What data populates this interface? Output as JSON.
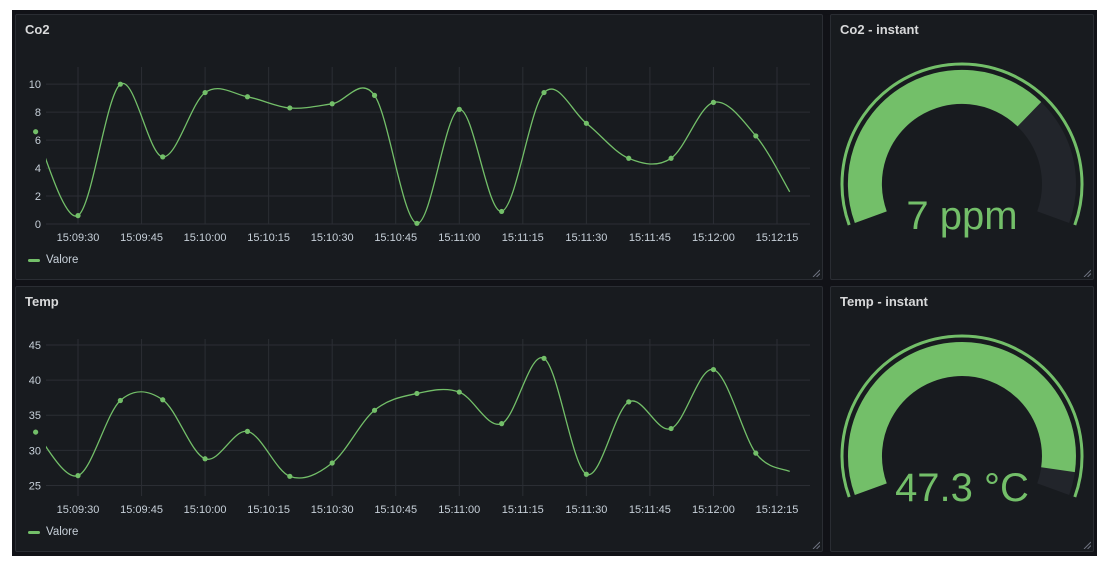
{
  "colors": {
    "series": "#73bf69",
    "gauge_track": "#22252b",
    "text": "#c7d0d9"
  },
  "panels": {
    "co2": {
      "title": "Co2",
      "legend_label": "Valore",
      "legend_icon": "legend-line-icon"
    },
    "temp": {
      "title": "Temp",
      "legend_label": "Valore",
      "legend_icon": "legend-line-icon"
    },
    "co2_instant": {
      "title": "Co2 - instant",
      "value_text": "7 ppm",
      "value": 7,
      "min": 0,
      "max": 10
    },
    "temp_instant": {
      "title": "Temp - instant",
      "value_text": "47.3 °C",
      "value": 47.3,
      "min": 0,
      "max": 50
    }
  },
  "chart_data": [
    {
      "type": "line",
      "title": "Co2",
      "xlabel": "",
      "ylabel": "",
      "x_ticks": [
        "15:09:30",
        "15:09:45",
        "15:10:00",
        "15:10:15",
        "15:10:30",
        "15:10:45",
        "15:11:00",
        "15:11:15",
        "15:11:30",
        "15:11:45",
        "15:12:00",
        "15:12:15"
      ],
      "y_ticks": [
        0,
        2,
        4,
        6,
        8,
        10
      ],
      "ylim": [
        0,
        10.8
      ],
      "grid": true,
      "series": [
        {
          "name": "Valore",
          "points": [
            [
              "15:09:20",
              6.6
            ],
            [
              "15:09:30",
              0.6
            ],
            [
              "15:09:40",
              10.0
            ],
            [
              "15:09:50",
              4.8
            ],
            [
              "15:10:00",
              9.4
            ],
            [
              "15:10:10",
              9.1
            ],
            [
              "15:10:20",
              8.3
            ],
            [
              "15:10:30",
              8.6
            ],
            [
              "15:10:40",
              9.2
            ],
            [
              "15:10:50",
              0.05
            ],
            [
              "15:11:00",
              8.2
            ],
            [
              "15:11:10",
              0.9
            ],
            [
              "15:11:20",
              9.4
            ],
            [
              "15:11:30",
              7.2
            ],
            [
              "15:11:40",
              4.7
            ],
            [
              "15:11:50",
              4.7
            ],
            [
              "15:12:00",
              8.7
            ],
            [
              "15:12:10",
              6.3
            ],
            [
              "15:12:18",
              2.3
            ]
          ],
          "markers_count": 18
        }
      ],
      "legend": "bottom-left"
    },
    {
      "type": "line",
      "title": "Temp",
      "xlabel": "",
      "ylabel": "",
      "x_ticks": [
        "15:09:30",
        "15:09:45",
        "15:10:00",
        "15:10:15",
        "15:10:30",
        "15:10:45",
        "15:11:00",
        "15:11:15",
        "15:11:30",
        "15:11:45",
        "15:12:00",
        "15:12:15"
      ],
      "y_ticks": [
        25,
        30,
        35,
        40,
        45
      ],
      "ylim": [
        23.5,
        45
      ],
      "grid": true,
      "series": [
        {
          "name": "Valore",
          "points": [
            [
              "15:09:20",
              32.6
            ],
            [
              "15:09:30",
              26.4
            ],
            [
              "15:09:40",
              37.1
            ],
            [
              "15:09:50",
              37.2
            ],
            [
              "15:10:00",
              28.8
            ],
            [
              "15:10:10",
              32.7
            ],
            [
              "15:10:20",
              26.3
            ],
            [
              "15:10:30",
              28.2
            ],
            [
              "15:10:40",
              35.7
            ],
            [
              "15:10:50",
              38.1
            ],
            [
              "15:11:00",
              38.3
            ],
            [
              "15:11:10",
              33.8
            ],
            [
              "15:11:20",
              43.1
            ],
            [
              "15:11:30",
              26.6
            ],
            [
              "15:11:40",
              36.9
            ],
            [
              "15:11:50",
              33.1
            ],
            [
              "15:12:00",
              41.5
            ],
            [
              "15:12:10",
              29.6
            ],
            [
              "15:12:18",
              27.0
            ]
          ],
          "markers_count": 18
        }
      ],
      "legend": "bottom-left"
    }
  ]
}
